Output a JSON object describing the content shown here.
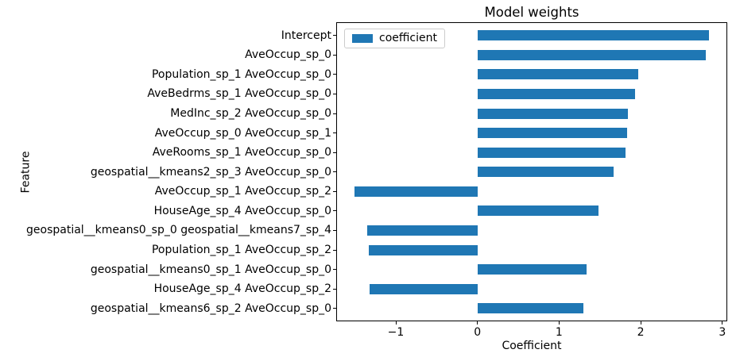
{
  "chart_data": {
    "type": "bar",
    "orientation": "horizontal",
    "title": "Model weights",
    "xlabel": "Coefficient",
    "ylabel": "Feature",
    "legend": {
      "label": "coefficient",
      "position": "upper left"
    },
    "bar_color": "#1f77b4",
    "grid": false,
    "categories": [
      "Intercept",
      "AveOccup_sp_0",
      "Population_sp_1 AveOccup_sp_0",
      "AveBedrms_sp_1 AveOccup_sp_0",
      "MedInc_sp_2 AveOccup_sp_0",
      "AveOccup_sp_0 AveOccup_sp_1",
      "AveRooms_sp_1 AveOccup_sp_0",
      "geospatial__kmeans2_sp_3 AveOccup_sp_0",
      "AveOccup_sp_1 AveOccup_sp_2",
      "HouseAge_sp_4 AveOccup_sp_0",
      "geospatial__kmeans0_sp_0 geospatial__kmeans7_sp_4",
      "Population_sp_1 AveOccup_sp_2",
      "geospatial__kmeans0_sp_1 AveOccup_sp_0",
      "HouseAge_sp_4 AveOccup_sp_2",
      "geospatial__kmeans6_sp_2 AveOccup_sp_0"
    ],
    "series": [
      {
        "name": "coefficient",
        "values": [
          2.84,
          2.8,
          1.97,
          1.93,
          1.84,
          1.83,
          1.81,
          1.67,
          -1.51,
          1.48,
          -1.35,
          -1.33,
          1.34,
          -1.32,
          1.3
        ]
      }
    ],
    "xlim": [
      -1.73,
      3.06
    ],
    "xticks": [
      -1,
      0,
      1,
      2,
      3
    ]
  }
}
